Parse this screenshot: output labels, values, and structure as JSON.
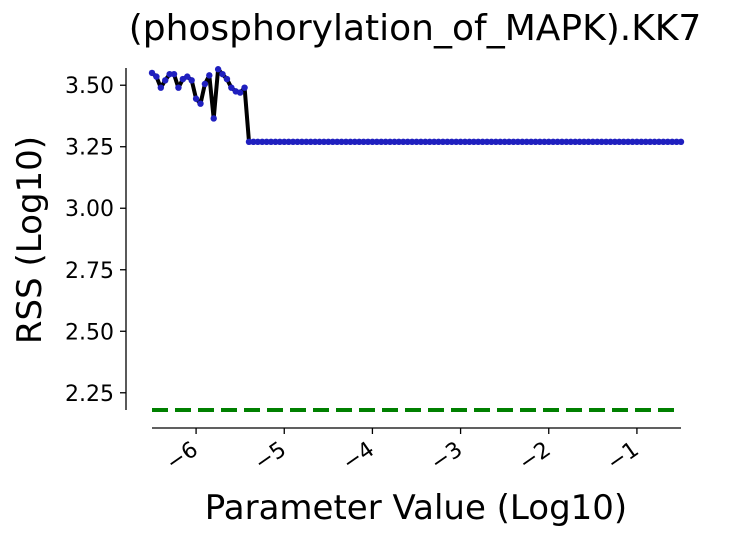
{
  "chart_data": {
    "type": "line",
    "title": "(phosphorylation_of_MAPK).KK7",
    "xlabel": "Parameter Value (Log10)",
    "ylabel": "RSS (Log10)",
    "xlim": [
      -6.5,
      -0.5
    ],
    "ylim": [
      2.18,
      3.57
    ],
    "xticks": [
      -6,
      -5,
      -4,
      -3,
      -2,
      -1
    ],
    "xtick_labels": [
      "−6",
      "−5",
      "−4",
      "−3",
      "−2",
      "−1"
    ],
    "yticks": [
      2.25,
      2.5,
      2.75,
      3.0,
      3.25,
      3.5
    ],
    "ytick_labels": [
      "2.25",
      "2.50",
      "2.75",
      "3.00",
      "3.25",
      "3.50"
    ],
    "grid": false,
    "series": [
      {
        "line_color": "#000000",
        "marker_color": "#1f1fbf",
        "x": [
          -6.5,
          -6.45,
          -6.4,
          -6.35,
          -6.3,
          -6.25,
          -6.2,
          -6.15,
          -6.1,
          -6.05,
          -6.0,
          -5.95,
          -5.9,
          -5.85,
          -5.8,
          -5.75,
          -5.7,
          -5.65,
          -5.6,
          -5.55,
          -5.5,
          -5.45,
          -5.4,
          -5.35,
          -5.3,
          -5.25,
          -5.2
        ],
        "y": [
          3.55,
          3.535,
          3.49,
          3.52,
          3.545,
          3.545,
          3.49,
          3.525,
          3.535,
          3.52,
          3.445,
          3.425,
          3.505,
          3.54,
          3.365,
          3.565,
          3.545,
          3.525,
          3.49,
          3.475,
          3.47,
          3.49,
          3.27,
          3.27,
          3.27,
          3.27,
          3.27
        ],
        "flat_from_x": -5.2,
        "flat_to_x": -0.5,
        "flat_step": 0.05,
        "flat_y": 3.27
      }
    ],
    "reference_lines": [
      {
        "y": 2.18,
        "color": "#008000",
        "style": "dashed"
      }
    ]
  }
}
